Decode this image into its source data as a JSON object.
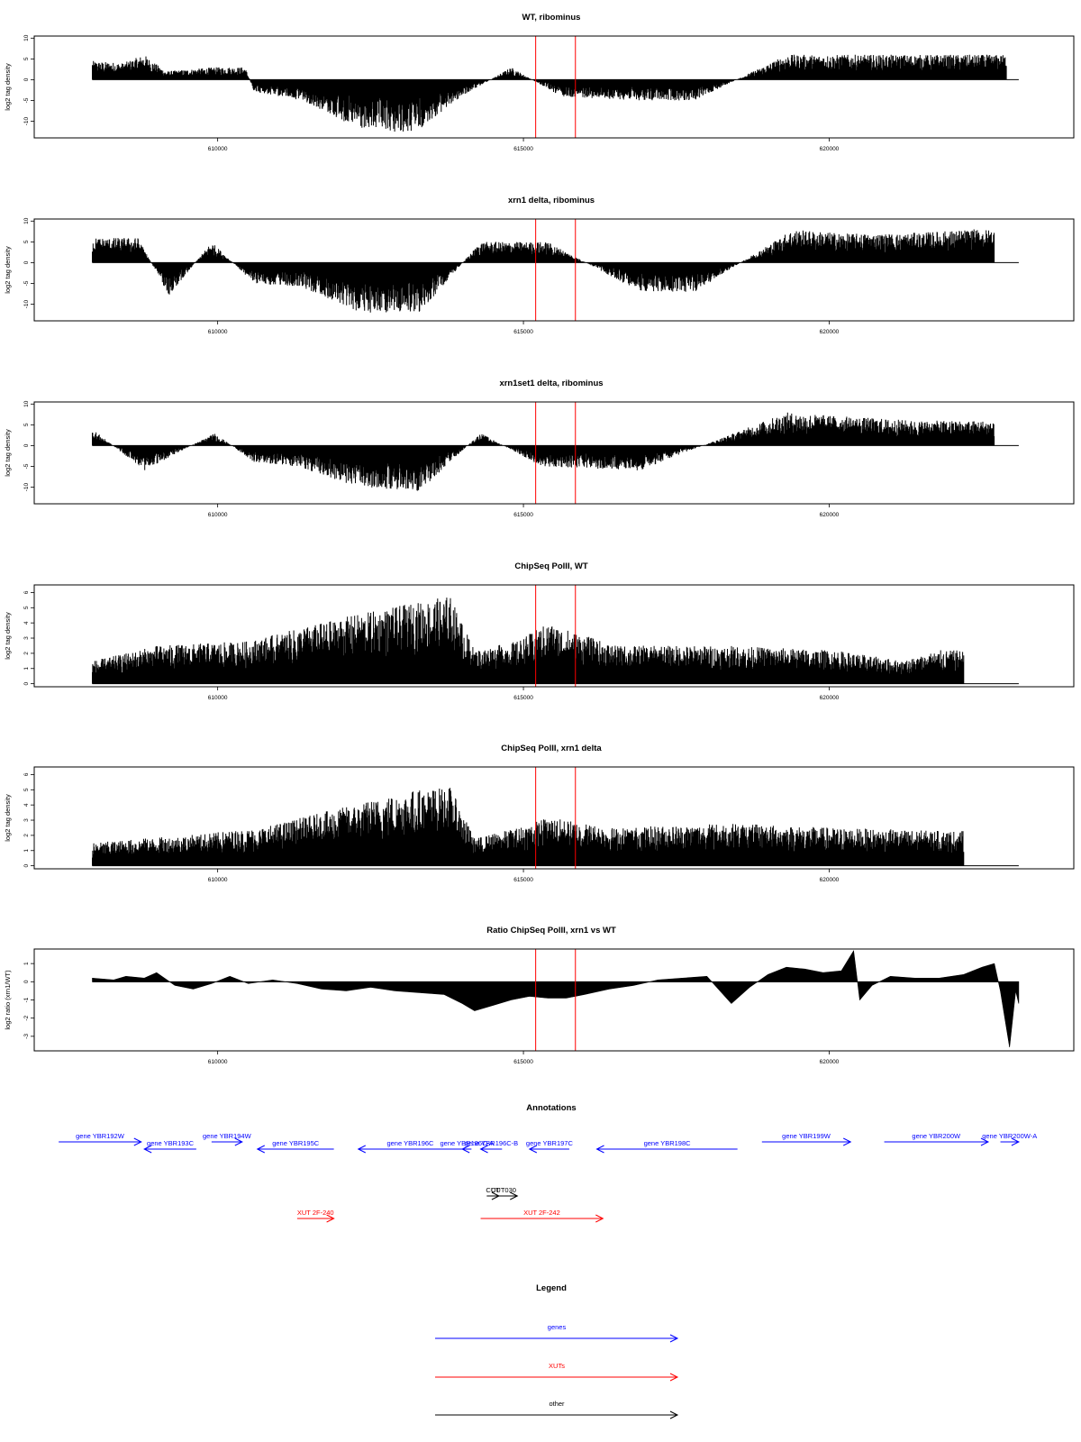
{
  "figure": {
    "x_ticks": [
      610000,
      615000,
      620000
    ],
    "x_range": [
      607000,
      624000
    ],
    "red_lines": [
      615200,
      615850
    ]
  },
  "chart_data": [
    {
      "type": "bar",
      "title": "WT, ribominus",
      "ylabel": "log2 tag density",
      "ylim": [
        -14,
        10.5
      ],
      "yticks": [
        -10,
        -5,
        0,
        5,
        10
      ],
      "series_envelope": [
        {
          "x": 607950,
          "y": 4.5
        },
        {
          "x": 608450,
          "y": 4
        },
        {
          "x": 608800,
          "y": 6
        },
        {
          "x": 609150,
          "y": 2
        },
        {
          "x": 609950,
          "y": 3
        },
        {
          "x": 610450,
          "y": 3
        },
        {
          "x": 610600,
          "y": -3
        },
        {
          "x": 611400,
          "y": -5
        },
        {
          "x": 612300,
          "y": -12
        },
        {
          "x": 613200,
          "y": -13
        },
        {
          "x": 614000,
          "y": -4
        },
        {
          "x": 614800,
          "y": 3
        },
        {
          "x": 615600,
          "y": -4
        },
        {
          "x": 616900,
          "y": -5
        },
        {
          "x": 617800,
          "y": -5
        },
        {
          "x": 619300,
          "y": 6
        },
        {
          "x": 620200,
          "y": 6
        },
        {
          "x": 621200,
          "y": 6
        },
        {
          "x": 622500,
          "y": 6
        }
      ]
    },
    {
      "type": "bar",
      "title": "xrn1 delta, ribominus",
      "ylabel": "log2 tag density",
      "ylim": [
        -14,
        10.5
      ],
      "yticks": [
        -10,
        -5,
        0,
        5,
        10
      ],
      "series_envelope": [
        {
          "x": 607950,
          "y": 6
        },
        {
          "x": 608700,
          "y": 6
        },
        {
          "x": 609200,
          "y": -8
        },
        {
          "x": 609900,
          "y": 5
        },
        {
          "x": 610600,
          "y": -5
        },
        {
          "x": 611400,
          "y": -6
        },
        {
          "x": 612300,
          "y": -12
        },
        {
          "x": 613300,
          "y": -12
        },
        {
          "x": 614300,
          "y": 5
        },
        {
          "x": 615400,
          "y": 5
        },
        {
          "x": 616900,
          "y": -7
        },
        {
          "x": 617800,
          "y": -7
        },
        {
          "x": 619400,
          "y": 8
        },
        {
          "x": 620300,
          "y": 7
        },
        {
          "x": 621200,
          "y": 7
        },
        {
          "x": 622300,
          "y": 8
        }
      ]
    },
    {
      "type": "bar",
      "title": "xrn1set1 delta, ribominus",
      "ylabel": "log2 tag density",
      "ylim": [
        -14,
        10.5
      ],
      "yticks": [
        -10,
        -5,
        0,
        5,
        10
      ],
      "series_envelope": [
        {
          "x": 607950,
          "y": 4
        },
        {
          "x": 608800,
          "y": -6
        },
        {
          "x": 609950,
          "y": 3
        },
        {
          "x": 610600,
          "y": -4
        },
        {
          "x": 611300,
          "y": -5
        },
        {
          "x": 612300,
          "y": -10
        },
        {
          "x": 613300,
          "y": -11
        },
        {
          "x": 614300,
          "y": 3
        },
        {
          "x": 615300,
          "y": -5
        },
        {
          "x": 616900,
          "y": -6
        },
        {
          "x": 619300,
          "y": 8
        },
        {
          "x": 620300,
          "y": 7
        },
        {
          "x": 621400,
          "y": 6
        },
        {
          "x": 622300,
          "y": 6
        }
      ]
    },
    {
      "type": "bar",
      "title": "ChipSeq PolII, WT",
      "ylabel": "log2 tag density",
      "ylim": [
        -0.2,
        6.5
      ],
      "yticks": [
        0,
        1,
        2,
        3,
        4,
        5,
        6
      ],
      "series_envelope": [
        {
          "x": 607950,
          "y": 1.5
        },
        {
          "x": 608500,
          "y": 2
        },
        {
          "x": 609000,
          "y": 2.5
        },
        {
          "x": 610500,
          "y": 2.8
        },
        {
          "x": 612200,
          "y": 4.5
        },
        {
          "x": 613200,
          "y": 5.3
        },
        {
          "x": 613800,
          "y": 5.8
        },
        {
          "x": 614200,
          "y": 2.2
        },
        {
          "x": 614900,
          "y": 2.8
        },
        {
          "x": 615400,
          "y": 4
        },
        {
          "x": 616500,
          "y": 2.5
        },
        {
          "x": 618300,
          "y": 2.5
        },
        {
          "x": 620100,
          "y": 2.2
        },
        {
          "x": 621200,
          "y": 1.5
        },
        {
          "x": 621800,
          "y": 2.2
        }
      ]
    },
    {
      "type": "bar",
      "title": "ChipSeq PolII, xrn1 delta",
      "ylabel": "log2 tag density",
      "ylim": [
        -0.2,
        6.5
      ],
      "yticks": [
        0,
        1,
        2,
        3,
        4,
        5,
        6
      ],
      "series_envelope": [
        {
          "x": 607950,
          "y": 1.5
        },
        {
          "x": 608800,
          "y": 1.8
        },
        {
          "x": 609500,
          "y": 2
        },
        {
          "x": 610700,
          "y": 2.5
        },
        {
          "x": 612200,
          "y": 4
        },
        {
          "x": 613200,
          "y": 5
        },
        {
          "x": 613800,
          "y": 5.2
        },
        {
          "x": 614200,
          "y": 1.8
        },
        {
          "x": 614900,
          "y": 2.5
        },
        {
          "x": 615400,
          "y": 3.2
        },
        {
          "x": 616500,
          "y": 2.5
        },
        {
          "x": 618300,
          "y": 2.8
        },
        {
          "x": 620100,
          "y": 2.5
        },
        {
          "x": 621800,
          "y": 2.3
        }
      ]
    },
    {
      "type": "area",
      "title": "Ratio ChipSeq PolII, xrn1 vs WT",
      "ylabel": "log2 ratio (xrn1/WT)",
      "ylim": [
        -3.8,
        1.8
      ],
      "yticks": [
        -3,
        -2,
        -1,
        0,
        1
      ],
      "x": [
        607950,
        608300,
        608500,
        608800,
        609000,
        609300,
        609600,
        609900,
        610200,
        610500,
        610900,
        611300,
        611700,
        612100,
        612500,
        612900,
        613300,
        613700,
        614000,
        614200,
        614500,
        614800,
        615100,
        615400,
        615700,
        616000,
        616400,
        616800,
        617200,
        617600,
        618000,
        618400,
        618700,
        619000,
        619300,
        619600,
        619900,
        620200,
        620400,
        620500,
        620700,
        621000,
        621400,
        621800,
        622200,
        622500,
        622700,
        622800,
        622950,
        623050,
        623100
      ],
      "y": [
        0.2,
        0.1,
        0.3,
        0.2,
        0.5,
        -0.2,
        -0.4,
        -0.1,
        0.3,
        -0.1,
        0.1,
        -0.1,
        -0.4,
        -0.5,
        -0.3,
        -0.5,
        -0.6,
        -0.7,
        -1.2,
        -1.6,
        -1.3,
        -1.0,
        -0.8,
        -0.9,
        -0.9,
        -0.7,
        -0.4,
        -0.2,
        0.1,
        0.2,
        0.3,
        -1.2,
        -0.3,
        0.4,
        0.8,
        0.7,
        0.5,
        0.6,
        1.7,
        -1.0,
        -0.2,
        0.3,
        0.2,
        0.2,
        0.4,
        0.8,
        1.0,
        -0.5,
        -3.6,
        -0.5,
        -1.2
      ]
    }
  ],
  "annotations": {
    "title": "Annotations",
    "items": [
      {
        "label": "gene YBR192W",
        "start": 607400,
        "end": 608750,
        "dir": "right",
        "color": "#0000ff",
        "row": 0
      },
      {
        "label": "gene YBR193C",
        "start": 608800,
        "end": 609650,
        "dir": "left",
        "color": "#0000ff",
        "row": 1
      },
      {
        "label": "gene YBR194W",
        "start": 609900,
        "end": 610400,
        "dir": "right",
        "color": "#0000ff",
        "row": 0
      },
      {
        "label": "gene YBR195C",
        "start": 610650,
        "end": 611900,
        "dir": "left",
        "color": "#0000ff",
        "row": 1
      },
      {
        "label": "gene YBR196C",
        "start": 612300,
        "end": 614000,
        "dir": "left",
        "color": "#0000ff",
        "row": 1
      },
      {
        "label": "gene YBR196C-A",
        "start": 614000,
        "end": 614150,
        "dir": "left",
        "color": "#0000ff",
        "row": 1
      },
      {
        "label": "gene YBR196C-B",
        "start": 614300,
        "end": 614650,
        "dir": "left",
        "color": "#0000ff",
        "row": 1
      },
      {
        "label": "gene YBR197C",
        "start": 615100,
        "end": 615750,
        "dir": "left",
        "color": "#0000ff",
        "row": 1
      },
      {
        "label": "gene YBR198C",
        "start": 616200,
        "end": 618500,
        "dir": "left",
        "color": "#0000ff",
        "row": 1
      },
      {
        "label": "gene YBR199W",
        "start": 618900,
        "end": 620350,
        "dir": "right",
        "color": "#0000ff",
        "row": 0
      },
      {
        "label": "gene YBR200W",
        "start": 620900,
        "end": 622600,
        "dir": "right",
        "color": "#0000ff",
        "row": 0
      },
      {
        "label": "gene YBR200W-A",
        "start": 622800,
        "end": 623100,
        "dir": "right",
        "color": "#0000ff",
        "row": 0
      },
      {
        "label": "CUT",
        "start": 614400,
        "end": 614600,
        "dir": "right",
        "color": "#000000",
        "row": 2
      },
      {
        "label": "CUT030",
        "start": 614450,
        "end": 614900,
        "dir": "right",
        "color": "#000000",
        "row": 2
      },
      {
        "label": "XUT 2F-240",
        "start": 611300,
        "end": 611900,
        "dir": "right",
        "color": "#ff0000",
        "row": 3
      },
      {
        "label": "XUT 2F-242",
        "start": 614300,
        "end": 616300,
        "dir": "right",
        "color": "#ff0000",
        "row": 3
      }
    ]
  },
  "legend": {
    "title": "Legend",
    "items": [
      {
        "label": "genes",
        "color": "#0000ff"
      },
      {
        "label": "XUTs",
        "color": "#ff0000"
      },
      {
        "label": "other",
        "color": "#000000"
      }
    ]
  }
}
